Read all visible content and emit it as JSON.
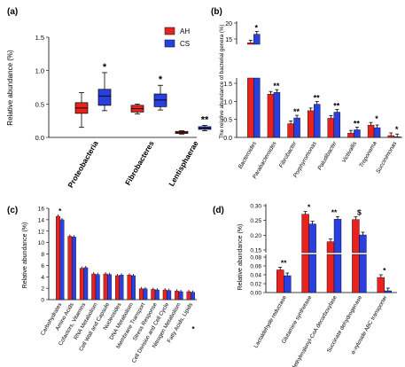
{
  "colors": {
    "red": "#e8221c",
    "blue": "#2a3fe0",
    "black": "#000000"
  },
  "chart_data": [
    {
      "panel": "(a)",
      "type": "boxplot",
      "ylabel": "Relative abundance (%)",
      "yticks": [
        "0.0",
        "0.5",
        "1.0",
        "1.5"
      ],
      "ylim": [
        0,
        1.5
      ],
      "categories": [
        "Proteobacteria",
        "Fibrobacteres",
        "Lentisphaerae"
      ],
      "legend": [
        "AH",
        "CS"
      ],
      "legend_position": "top-right",
      "boxes": [
        [
          {
            "min": 0.15,
            "q1": 0.36,
            "median": 0.44,
            "q3": 0.52,
            "max": 0.67
          },
          {
            "min": 0.4,
            "q1": 0.48,
            "median": 0.62,
            "q3": 0.72,
            "max": 0.97
          }
        ],
        [
          {
            "min": 0.35,
            "q1": 0.38,
            "median": 0.43,
            "q3": 0.48,
            "max": 0.5
          },
          {
            "min": 0.41,
            "q1": 0.46,
            "median": 0.56,
            "q3": 0.65,
            "max": 0.78
          }
        ],
        [
          {
            "min": 0.05,
            "q1": 0.06,
            "median": 0.07,
            "q3": 0.09,
            "max": 0.1
          },
          {
            "min": 0.1,
            "q1": 0.12,
            "median": 0.14,
            "q3": 0.16,
            "max": 0.18
          }
        ]
      ],
      "significance": [
        "*",
        "*",
        "**"
      ]
    },
    {
      "panel": "(b)",
      "type": "bar",
      "ylabel": "The relative abundance of bacterial genera (%)",
      "ylim": [
        0,
        16
      ],
      "yticks_upper": [
        "20",
        "15"
      ],
      "yticks_lower": [
        "1.5",
        "1.0",
        "0.5",
        "0.0"
      ],
      "categories": [
        "Bacteroides",
        "Parabacteroides",
        "Fibrobacter",
        "Porphyromonas",
        "Paludibacter",
        "Victivallis",
        "Treponema",
        "Succinimonas"
      ],
      "series": [
        {
          "values": [
            13.8,
            1.2,
            0.38,
            0.74,
            0.53,
            0.12,
            0.34,
            0.05
          ]
        },
        {
          "values": [
            16.5,
            1.25,
            0.54,
            0.92,
            0.7,
            0.21,
            0.27,
            0.02
          ]
        }
      ],
      "significance": [
        "*",
        "**",
        "**",
        "**",
        "**",
        "**",
        "*",
        "*"
      ]
    },
    {
      "panel": "(c)",
      "type": "bar",
      "ylabel": "Relative abundance (%)",
      "yticks": [
        "0",
        "2",
        "4",
        "6",
        "8",
        "10",
        "12",
        "14",
        "16"
      ],
      "ylim": [
        0,
        16
      ],
      "categories": [
        "Carbohydrates",
        "Amino Acids",
        "Cofactors, Vitamins",
        "RNA Metabolism",
        "Cell Wall and Capsule",
        "Nucleosides",
        "DNA Metabolism",
        "Membrane Transport",
        "Stress Response",
        "Cell Division and Cell Cycle",
        "Nitrogen Metabolism",
        "Fatty Acids, Lipids"
      ],
      "series": [
        {
          "values": [
            14.6,
            11.1,
            5.5,
            4.5,
            4.5,
            4.2,
            4.3,
            1.9,
            1.8,
            1.7,
            1.5,
            1.4
          ]
        },
        {
          "values": [
            14.0,
            11.0,
            5.6,
            4.4,
            4.4,
            4.3,
            4.2,
            1.9,
            1.7,
            1.6,
            1.4,
            1.3
          ]
        }
      ],
      "significance": [
        "*",
        "",
        "",
        "",
        "",
        "",
        "",
        "",
        "",
        "",
        "",
        ""
      ],
      "extra_marks": [
        {
          "after_category": "Fatty Acids, Lipids",
          "text": "*"
        }
      ]
    },
    {
      "panel": "(d)",
      "type": "bar",
      "ylabel": "Relative abundance (%)",
      "yticks_upper": [
        "0.30",
        "0.25",
        "0.20",
        "0.15"
      ],
      "yticks_lower": [
        "0.08",
        "0.06",
        "0.04",
        "0.02",
        "0.00"
      ],
      "categories": [
        "Lactaldehyde reductase",
        "Glutamine synthetase",
        "Methylmalonyl-CoA decarboxylase",
        "Succinate dehydrogenase",
        "α-xyloside ABC transporter"
      ],
      "series": [
        {
          "values": [
            0.051,
            0.271,
            0.178,
            0.253,
            0.034
          ]
        },
        {
          "values": [
            0.038,
            0.238,
            0.254,
            0.201,
            0.004
          ]
        }
      ],
      "significance": [
        "**",
        "*",
        "**",
        "$",
        "*"
      ]
    }
  ]
}
